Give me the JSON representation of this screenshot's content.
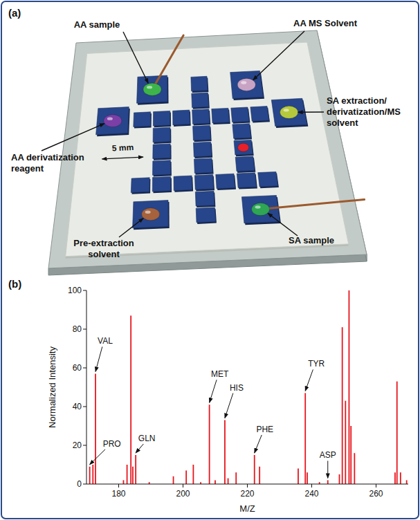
{
  "diagram": {
    "panel_label": "(a)",
    "labels": [
      "AA sample",
      "AA MS Solvent",
      "SA extraction/derivatization/MS solvent",
      "AA derivatization reagent",
      "Pre-extraction solvent",
      "SA sample"
    ],
    "scale_bar": "5 mm"
  },
  "chart_panel": {
    "panel_label": "(b)"
  },
  "chart_data": {
    "type": "bar",
    "x": [
      171.0,
      172.0,
      172.8,
      181.5,
      182.6,
      183.8,
      184.4,
      185.3,
      189.5,
      197.0,
      201.0,
      203.2,
      205.5,
      208.2,
      210.0,
      213.0,
      214.0,
      216.5,
      222.2,
      223.8,
      235.8,
      238.0,
      238.6,
      242.4,
      245.0,
      248.6,
      249.5,
      250.5,
      251.6,
      252.2,
      253.3,
      265.9,
      266.5,
      267.6,
      269.5
    ],
    "values": [
      9,
      10,
      57,
      2,
      10,
      87,
      9,
      15,
      1,
      4,
      7,
      10,
      1,
      41,
      2,
      33,
      3,
      6,
      15,
      9,
      8,
      47,
      6,
      1,
      2,
      5,
      81,
      43,
      100,
      30,
      16,
      6,
      53,
      6,
      2
    ],
    "color": "#e8141c",
    "xlim": [
      170,
      270
    ],
    "xticks": [
      180,
      200,
      220,
      240,
      260
    ],
    "ylim": [
      0,
      100
    ],
    "yticks": [
      0,
      20,
      40,
      60,
      80,
      100
    ],
    "x_label": "M/Z",
    "y_label": "Normalized Intensity",
    "grid": false,
    "annotations": [
      {
        "text": "PRO",
        "x": 171.0,
        "y": 9
      },
      {
        "text": "VAL",
        "x": 172.8,
        "y": 57
      },
      {
        "text": "GLN",
        "x": 185.3,
        "y": 15
      },
      {
        "text": "MET",
        "x": 208.2,
        "y": 41
      },
      {
        "text": "HIS",
        "x": 213.0,
        "y": 33
      },
      {
        "text": "PHE",
        "x": 222.2,
        "y": 15
      },
      {
        "text": "TYR",
        "x": 238.0,
        "y": 47
      },
      {
        "text": "ASP",
        "x": 245.0,
        "y": 2
      }
    ]
  }
}
